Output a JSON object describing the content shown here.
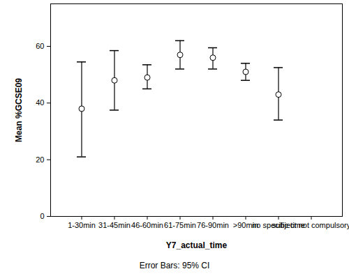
{
  "chart_data": {
    "type": "errorbar",
    "x_label": "Y7_actual_time",
    "y_label": "Mean %GCSE09",
    "caption": "Error Bars: 95% CI",
    "categories": [
      "1-30min",
      "31-45min",
      "46-60min",
      "61-75min",
      "76-90min",
      ">90min",
      "no specific time",
      "subject not compulsory"
    ],
    "values": [
      38,
      48,
      49,
      57,
      56,
      51,
      43,
      null
    ],
    "ci_lower": [
      21,
      37.5,
      45,
      52,
      52,
      48,
      34,
      null
    ],
    "ci_upper": [
      54.5,
      58.5,
      53.5,
      62,
      59.5,
      54,
      52.5,
      null
    ],
    "color": "#000000",
    "marker": "circle",
    "ylim": [
      0,
      75
    ],
    "yticks": [
      0,
      20,
      40,
      60
    ],
    "grid": false
  }
}
